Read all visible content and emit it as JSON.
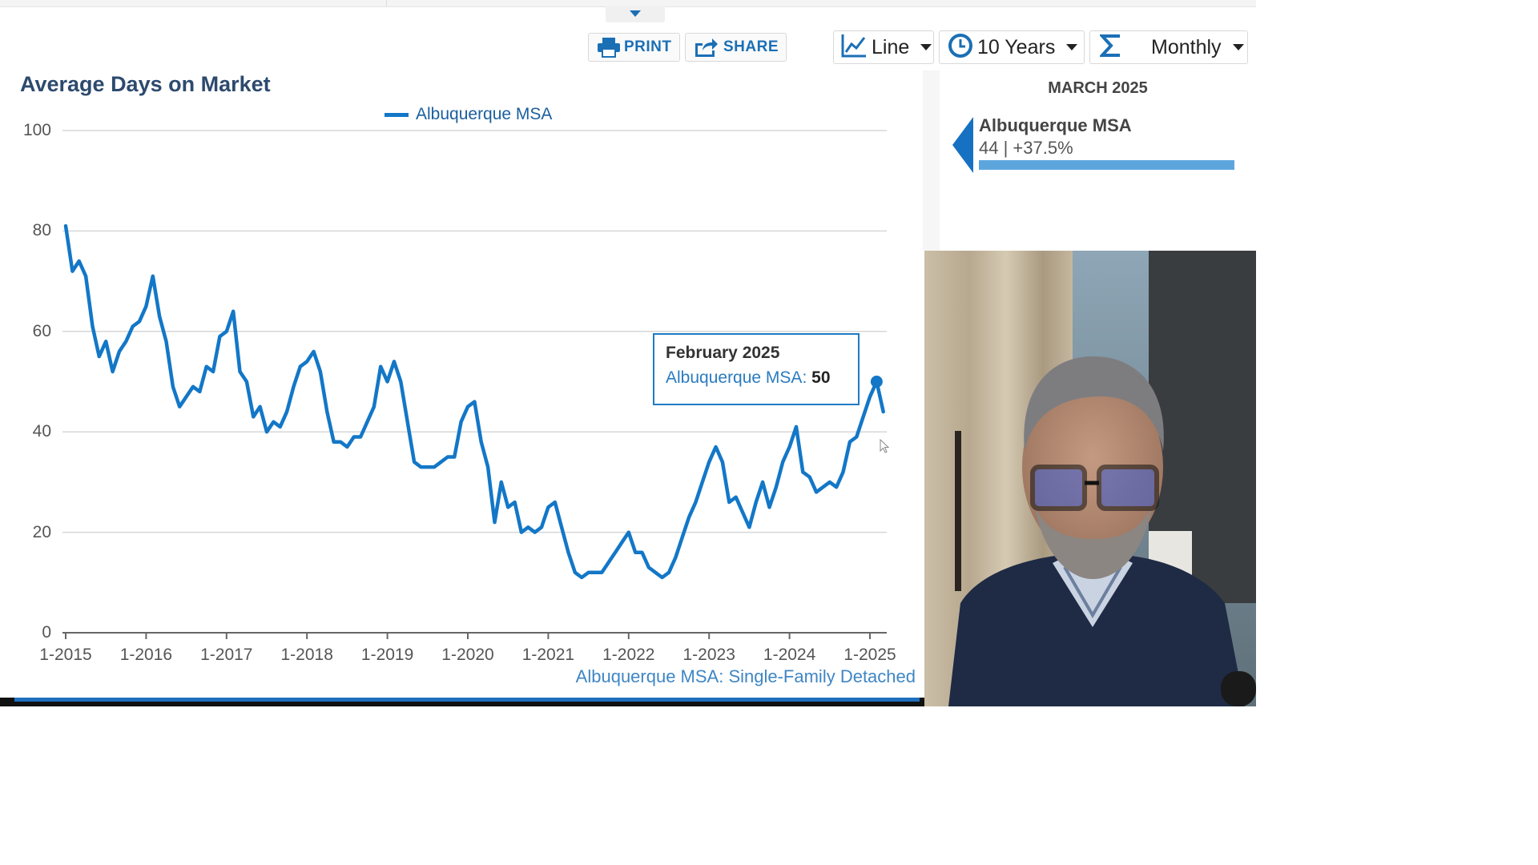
{
  "toolbar": {
    "print_label": "PRINT",
    "share_label": "SHARE",
    "chart_type_label": "Line",
    "range_label": "10 Years",
    "period_label": "Monthly",
    "icons": [
      "printer-icon",
      "share-icon",
      "line-chart-icon",
      "clock-icon",
      "sigma-icon"
    ],
    "accent_color": "#1b6fb5"
  },
  "tooltip": {
    "title": "February 2025",
    "series": "Albuquerque MSA",
    "separator": ":",
    "value": "50"
  },
  "side_panel": {
    "month": "MARCH 2025",
    "area_name": "Albuquerque MSA",
    "stat": "44 | +37.5%"
  },
  "chart_data": {
    "type": "line",
    "title": "Average Days on Market",
    "subtitle": "Albuquerque MSA: Single-Family Detached",
    "xlabel": "",
    "ylabel": "",
    "ylim": [
      0,
      100
    ],
    "yticks": [
      0,
      20,
      40,
      60,
      80,
      100
    ],
    "x_tick_labels": [
      "1-2015",
      "1-2016",
      "1-2017",
      "1-2018",
      "1-2019",
      "1-2020",
      "1-2021",
      "1-2022",
      "1-2023",
      "1-2024",
      "1-2025"
    ],
    "grid": true,
    "legend": "top-center",
    "line_color": "#1377c7",
    "series": [
      {
        "name": "Albuquerque MSA",
        "x_start": "1-2015",
        "x_end": "3-2025",
        "frequency": "monthly",
        "values": [
          81,
          72,
          74,
          71,
          61,
          55,
          58,
          52,
          56,
          58,
          61,
          62,
          65,
          71,
          63,
          58,
          49,
          45,
          47,
          49,
          48,
          53,
          52,
          59,
          60,
          64,
          52,
          50,
          43,
          45,
          40,
          42,
          41,
          44,
          49,
          53,
          54,
          56,
          52,
          44,
          38,
          38,
          37,
          39,
          39,
          42,
          45,
          53,
          50,
          54,
          50,
          42,
          34,
          33,
          33,
          33,
          34,
          35,
          35,
          42,
          45,
          46,
          38,
          33,
          22,
          30,
          25,
          26,
          20,
          21,
          20,
          21,
          25,
          26,
          21,
          16,
          12,
          11,
          12,
          12,
          12,
          14,
          16,
          18,
          20,
          16,
          16,
          13,
          12,
          11,
          12,
          15,
          19,
          23,
          26,
          30,
          34,
          37,
          34,
          26,
          27,
          24,
          21,
          26,
          30,
          25,
          29,
          34,
          37,
          41,
          32,
          31,
          28,
          29,
          30,
          29,
          32,
          38,
          39,
          43,
          47,
          50,
          44
        ]
      }
    ],
    "highlight": {
      "x": "2-2025",
      "value": 50
    }
  }
}
